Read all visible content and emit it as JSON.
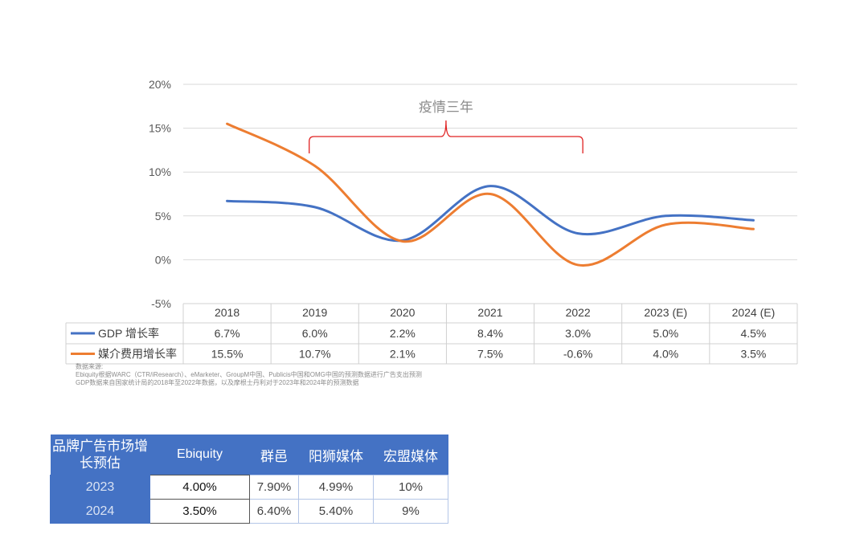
{
  "chart_data": {
    "type": "line",
    "title": "",
    "annotation": "疫情三年",
    "annotation_span": [
      "2019",
      "2022"
    ],
    "categories": [
      "2018",
      "2019",
      "2020",
      "2021",
      "2022",
      "2023 (E)",
      "2024 (E)"
    ],
    "ylim": [
      -5,
      20
    ],
    "yticks": [
      20,
      15,
      10,
      5,
      0,
      -5
    ],
    "ytick_labels": [
      "20%",
      "15%",
      "10%",
      "5%",
      "0%",
      "-5%"
    ],
    "grid": true,
    "series": [
      {
        "name": "GDP 增长率",
        "color": "#4472c4",
        "values": [
          6.7,
          6.0,
          2.2,
          8.4,
          3.0,
          5.0,
          4.5
        ],
        "labels": [
          "6.7%",
          "6.0%",
          "2.2%",
          "8.4%",
          "3.0%",
          "5.0%",
          "4.5%"
        ]
      },
      {
        "name": "媒介费用增长率",
        "color": "#ed7d31",
        "values": [
          15.5,
          10.7,
          2.1,
          7.5,
          -0.6,
          4.0,
          3.5
        ],
        "labels": [
          "15.5%",
          "10.7%",
          "2.1%",
          "7.5%",
          "-0.6%",
          "4.0%",
          "3.5%"
        ]
      }
    ]
  },
  "source": {
    "label": "数据来源:",
    "line1": "Ebiquity根据WARC（CTR/iResearch）、eMarketer、GroupM中国、Publicis中国和OMG中国的预测数据进行广告支出预测",
    "line2": "GDP数据来自国家统计局的2018年至2022年数据，以及摩根士丹利对于2023年和2024年的预测数据"
  },
  "estimate_table": {
    "corner": "品牌广告市场增长预估",
    "columns": [
      "Ebiquity",
      "群邑",
      "阳狮媒体",
      "宏盟媒体"
    ],
    "rows": [
      {
        "year": "2023",
        "values": [
          "4.00%",
          "7.90%",
          "4.99%",
          "10%"
        ]
      },
      {
        "year": "2024",
        "values": [
          "3.50%",
          "6.40%",
          "5.40%",
          "9%"
        ]
      }
    ]
  }
}
